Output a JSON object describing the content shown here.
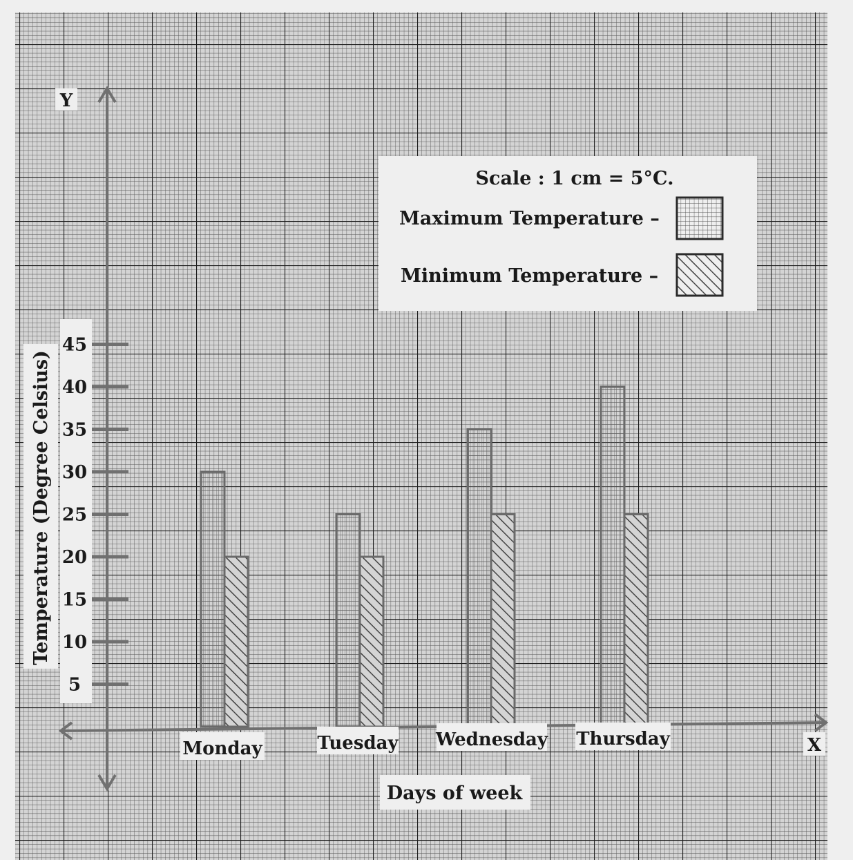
{
  "chart_data": {
    "type": "bar",
    "categories": [
      "Monday",
      "Tuesday",
      "Wednesday",
      "Thursday"
    ],
    "series": [
      {
        "name": "Maximum Temperature",
        "values": [
          30,
          25,
          35,
          40
        ]
      },
      {
        "name": "Minimum Temperature",
        "values": [
          20,
          20,
          25,
          25
        ]
      }
    ],
    "xlabel": "Days of week",
    "ylabel": "Temperature (Degree Celsius)",
    "ylim": [
      0,
      45
    ],
    "yticks": [
      5,
      10,
      15,
      20,
      25,
      30,
      35,
      40,
      45
    ],
    "axis_y_letter": "Y",
    "axis_x_letter": "X",
    "legend": {
      "scale_text": "Scale : 1 cm = 5°C.",
      "max_label": "Maximum Temperature –",
      "min_label": "Minimum Temperature –",
      "placement": "top-right"
    },
    "grid": true,
    "paper": "graph paper"
  }
}
